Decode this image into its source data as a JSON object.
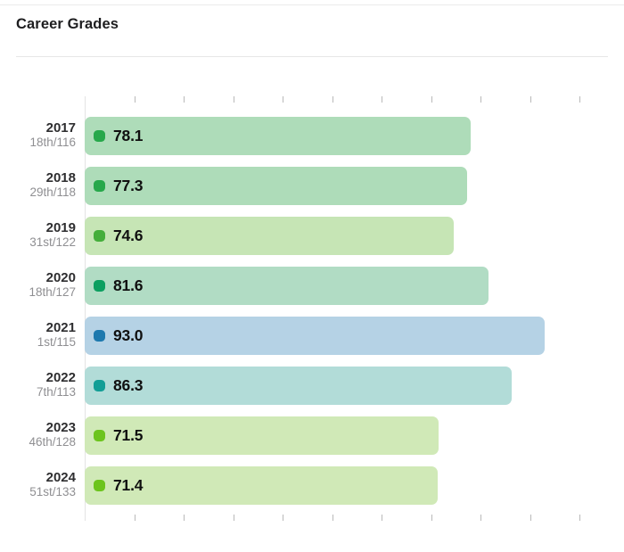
{
  "header": {
    "title": "Career Grades"
  },
  "chart_data": {
    "type": "bar",
    "orientation": "horizontal",
    "title": "Career Grades",
    "xlabel": "",
    "ylabel": "",
    "xlim": [
      0,
      100
    ],
    "x_ticks": [
      0,
      10,
      20,
      30,
      40,
      50,
      60,
      70,
      80,
      90,
      100
    ],
    "axes_shown": [
      "top",
      "bottom"
    ],
    "grid": false,
    "legend": false,
    "rows": [
      {
        "year": "2017",
        "rank": "18th/116",
        "value": 78.1,
        "label": "78.1",
        "dot_color": "#27a84b",
        "bar_color": "#aedcb9"
      },
      {
        "year": "2018",
        "rank": "29th/118",
        "value": 77.3,
        "label": "77.3",
        "dot_color": "#27a84b",
        "bar_color": "#aedcb9"
      },
      {
        "year": "2019",
        "rank": "31st/122",
        "value": 74.6,
        "label": "74.6",
        "dot_color": "#45ae3b",
        "bar_color": "#c6e5b5"
      },
      {
        "year": "2020",
        "rank": "18th/127",
        "value": 81.6,
        "label": "81.6",
        "dot_color": "#0c9f60",
        "bar_color": "#b1dcc4"
      },
      {
        "year": "2021",
        "rank": "1st/115",
        "value": 93.0,
        "label": "93.0",
        "dot_color": "#1d79ae",
        "bar_color": "#b5d2e5"
      },
      {
        "year": "2022",
        "rank": "7th/113",
        "value": 86.3,
        "label": "86.3",
        "dot_color": "#129e96",
        "bar_color": "#b2dcd8"
      },
      {
        "year": "2023",
        "rank": "46th/128",
        "value": 71.5,
        "label": "71.5",
        "dot_color": "#6cc41d",
        "bar_color": "#d0e9b7"
      },
      {
        "year": "2024",
        "rank": "51st/133",
        "value": 71.4,
        "label": "71.4",
        "dot_color": "#6cc41d",
        "bar_color": "#d0e9b7"
      }
    ]
  }
}
